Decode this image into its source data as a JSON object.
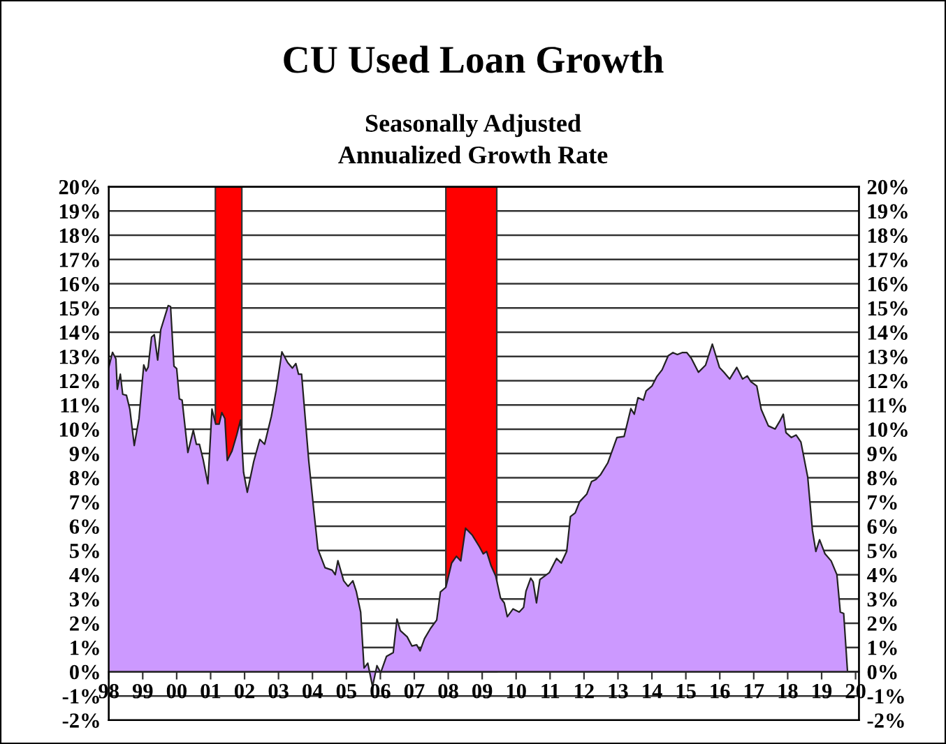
{
  "chart_data": {
    "type": "area",
    "title": "CU Used Loan Growth",
    "subtitle": "Seasonally Adjusted\nAnnualized Growth Rate",
    "series": [
      {
        "color": "#cc99ff",
        "x": [
          1998.0,
          1998.11,
          1998.21,
          1998.25,
          1998.34,
          1998.41,
          1998.52,
          1998.62,
          1998.75,
          1998.89,
          1999.03,
          1999.1,
          1999.16,
          1999.26,
          1999.34,
          1999.44,
          1999.53,
          1999.75,
          1999.82,
          1999.92,
          2000.0,
          2000.08,
          2000.16,
          2000.33,
          2000.49,
          2000.58,
          2000.67,
          2000.78,
          2000.92,
          2001.04,
          2001.15,
          2001.25,
          2001.33,
          2001.42,
          2001.49,
          2001.63,
          2001.77,
          2001.88,
          2001.97,
          2002.08,
          2002.27,
          2002.45,
          2002.59,
          2002.79,
          2002.93,
          2003.1,
          2003.27,
          2003.41,
          2003.51,
          2003.59,
          2003.68,
          2003.89,
          2004.03,
          2004.16,
          2004.37,
          2004.58,
          2004.67,
          2004.75,
          2004.92,
          2005.05,
          2005.19,
          2005.29,
          2005.42,
          2005.52,
          2005.63,
          2005.77,
          2005.9,
          2006.01,
          2006.18,
          2006.38,
          2006.49,
          2006.59,
          2006.79,
          2006.93,
          2007.07,
          2007.17,
          2007.3,
          2007.48,
          2007.66,
          2007.77,
          2007.93,
          2008.1,
          2008.24,
          2008.37,
          2008.51,
          2008.71,
          2008.92,
          2009.03,
          2009.13,
          2009.26,
          2009.4,
          2009.54,
          2009.65,
          2009.74,
          2009.91,
          2010.09,
          2010.22,
          2010.29,
          2010.43,
          2010.5,
          2010.6,
          2010.7,
          2010.98,
          2011.19,
          2011.33,
          2011.49,
          2011.6,
          2011.74,
          2011.87,
          2012.08,
          2012.22,
          2012.35,
          2012.49,
          2012.7,
          2012.97,
          2013.18,
          2013.38,
          2013.48,
          2013.59,
          2013.75,
          2013.83,
          2014.0,
          2014.14,
          2014.3,
          2014.48,
          2014.62,
          2014.75,
          2014.89,
          2015.03,
          2015.16,
          2015.37,
          2015.58,
          2015.78,
          2015.99,
          2016.12,
          2016.29,
          2016.5,
          2016.67,
          2016.81,
          2016.91,
          2017.09,
          2017.22,
          2017.43,
          2017.63,
          2017.77,
          2017.87,
          2017.95,
          2018.11,
          2018.25,
          2018.39,
          2018.59,
          2018.73,
          2018.83,
          2018.94,
          2019.1,
          2019.28,
          2019.45,
          2019.55,
          2019.65,
          2019.76
        ],
        "values": [
          12.56,
          13.17,
          12.9,
          11.65,
          12.27,
          11.44,
          11.4,
          10.83,
          9.33,
          10.44,
          12.65,
          12.4,
          12.56,
          13.8,
          13.9,
          12.85,
          14.1,
          15.1,
          15.06,
          12.6,
          12.5,
          11.25,
          11.2,
          9.04,
          9.96,
          9.38,
          9.38,
          8.75,
          7.75,
          10.83,
          10.21,
          10.21,
          10.69,
          10.44,
          8.71,
          9.1,
          9.77,
          10.38,
          8.23,
          7.4,
          8.67,
          9.58,
          9.38,
          10.54,
          11.6,
          13.19,
          12.75,
          12.52,
          12.71,
          12.27,
          12.27,
          8.71,
          6.79,
          5.06,
          4.29,
          4.19,
          4.0,
          4.58,
          3.75,
          3.52,
          3.75,
          3.32,
          2.46,
          0.15,
          0.35,
          -0.61,
          0.25,
          -0.04,
          0.63,
          0.79,
          2.17,
          1.69,
          1.44,
          1.06,
          1.11,
          0.86,
          1.36,
          1.79,
          2.13,
          3.29,
          3.48,
          4.48,
          4.76,
          4.57,
          5.92,
          5.63,
          5.15,
          4.86,
          4.96,
          4.38,
          3.94,
          3.04,
          2.84,
          2.27,
          2.59,
          2.46,
          2.65,
          3.32,
          3.86,
          3.71,
          2.84,
          3.8,
          4.09,
          4.67,
          4.48,
          4.96,
          6.4,
          6.55,
          7.01,
          7.32,
          7.84,
          7.93,
          8.13,
          8.61,
          9.66,
          9.7,
          10.85,
          10.62,
          11.3,
          11.2,
          11.58,
          11.78,
          12.16,
          12.45,
          13.03,
          13.16,
          13.08,
          13.16,
          13.16,
          12.93,
          12.35,
          12.64,
          13.51,
          12.55,
          12.35,
          12.07,
          12.55,
          12.07,
          12.2,
          11.97,
          11.78,
          10.82,
          10.14,
          10.01,
          10.34,
          10.62,
          9.86,
          9.66,
          9.76,
          9.47,
          8.03,
          5.82,
          4.96,
          5.44,
          4.86,
          4.57,
          4.0,
          2.46,
          2.4,
          0.06
        ]
      }
    ],
    "bands": [
      {
        "axis": "x",
        "from": 2001.14,
        "to": 2001.92,
        "color": "#ff0000"
      },
      {
        "axis": "x",
        "from": 2007.93,
        "to": 2009.43,
        "color": "#ff0000"
      }
    ],
    "xlim": [
      1998,
      2020.1
    ],
    "xticks": [
      {
        "value": 1998,
        "label": "98"
      },
      {
        "value": 1999,
        "label": "99"
      },
      {
        "value": 2000,
        "label": "00"
      },
      {
        "value": 2001,
        "label": "01"
      },
      {
        "value": 2002,
        "label": "02"
      },
      {
        "value": 2003,
        "label": "03"
      },
      {
        "value": 2004,
        "label": "04"
      },
      {
        "value": 2005,
        "label": "05"
      },
      {
        "value": 2006,
        "label": "06"
      },
      {
        "value": 2007,
        "label": "07"
      },
      {
        "value": 2008,
        "label": "08"
      },
      {
        "value": 2009,
        "label": "09"
      },
      {
        "value": 2010,
        "label": "10"
      },
      {
        "value": 2011,
        "label": "11"
      },
      {
        "value": 2012,
        "label": "12"
      },
      {
        "value": 2013,
        "label": "13"
      },
      {
        "value": 2014,
        "label": "14"
      },
      {
        "value": 2015,
        "label": "15"
      },
      {
        "value": 2016,
        "label": "16"
      },
      {
        "value": 2017,
        "label": "17"
      },
      {
        "value": 2018,
        "label": "18"
      },
      {
        "value": 2019,
        "label": "19"
      },
      {
        "value": 2020,
        "label": "20"
      }
    ],
    "ylim": [
      -2,
      20
    ],
    "yticks": [
      {
        "value": -2,
        "label": "-2%"
      },
      {
        "value": -1,
        "label": "-1%"
      },
      {
        "value": 0,
        "label": "0%"
      },
      {
        "value": 1,
        "label": "1%"
      },
      {
        "value": 2,
        "label": "2%"
      },
      {
        "value": 3,
        "label": "3%"
      },
      {
        "value": 4,
        "label": "4%"
      },
      {
        "value": 5,
        "label": "5%"
      },
      {
        "value": 6,
        "label": "6%"
      },
      {
        "value": 7,
        "label": "7%"
      },
      {
        "value": 8,
        "label": "8%"
      },
      {
        "value": 9,
        "label": "9%"
      },
      {
        "value": 10,
        "label": "10%"
      },
      {
        "value": 11,
        "label": "11%"
      },
      {
        "value": 12,
        "label": "12%"
      },
      {
        "value": 13,
        "label": "13%"
      },
      {
        "value": 14,
        "label": "14%"
      },
      {
        "value": 15,
        "label": "15%"
      },
      {
        "value": 16,
        "label": "16%"
      },
      {
        "value": 17,
        "label": "17%"
      },
      {
        "value": 18,
        "label": "18%"
      },
      {
        "value": 19,
        "label": "19%"
      },
      {
        "value": 20,
        "label": "20%"
      }
    ],
    "y2lim": [
      -2,
      20
    ],
    "y2ticks": [
      {
        "value": -2,
        "label": "-2%"
      },
      {
        "value": -1,
        "label": "-1%"
      },
      {
        "value": 0,
        "label": "0%"
      },
      {
        "value": 1,
        "label": "1%"
      },
      {
        "value": 2,
        "label": "2%"
      },
      {
        "value": 3,
        "label": "3%"
      },
      {
        "value": 4,
        "label": "4%"
      },
      {
        "value": 5,
        "label": "5%"
      },
      {
        "value": 6,
        "label": "6%"
      },
      {
        "value": 7,
        "label": "7%"
      },
      {
        "value": 8,
        "label": "8%"
      },
      {
        "value": 9,
        "label": "9%"
      },
      {
        "value": 10,
        "label": "10%"
      },
      {
        "value": 11,
        "label": "11%"
      },
      {
        "value": 12,
        "label": "12%"
      },
      {
        "value": 13,
        "label": "13%"
      },
      {
        "value": 14,
        "label": "14%"
      },
      {
        "value": 15,
        "label": "15%"
      },
      {
        "value": 16,
        "label": "16%"
      },
      {
        "value": 17,
        "label": "17%"
      },
      {
        "value": 18,
        "label": "18%"
      },
      {
        "value": 19,
        "label": "19%"
      },
      {
        "value": 20,
        "label": "20%"
      }
    ],
    "grid": "y"
  }
}
